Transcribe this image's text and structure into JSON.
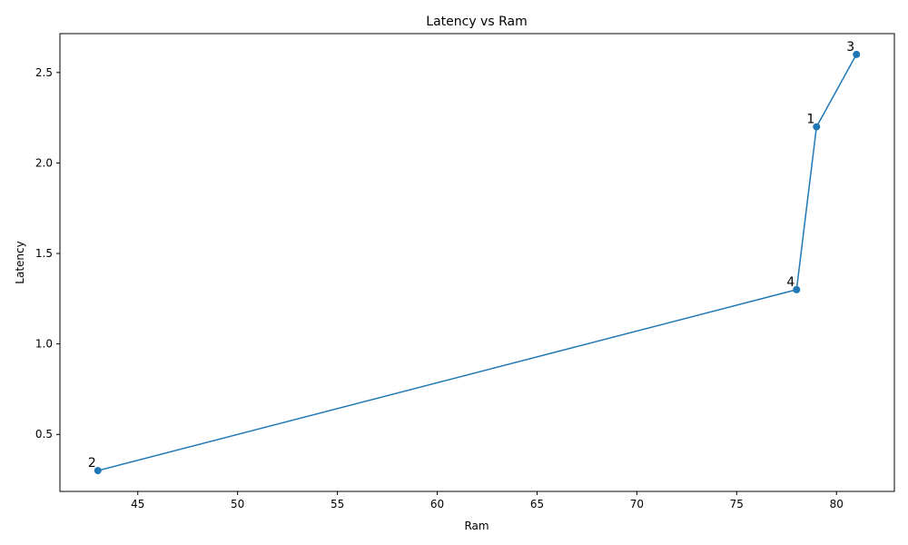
{
  "chart_data": {
    "type": "line",
    "title": "Latency vs Ram",
    "xlabel": "Ram",
    "ylabel": "Latency",
    "xlim": [
      41.1,
      82.9
    ],
    "ylim": [
      0.185,
      2.715
    ],
    "xticks": [
      45,
      50,
      55,
      60,
      65,
      70,
      75,
      80
    ],
    "yticks": [
      0.5,
      1.0,
      1.5,
      2.0,
      2.5
    ],
    "grid": false,
    "series": [
      {
        "color": "#1f77b4",
        "marker": "circle",
        "points": [
          {
            "label": "2",
            "x": 43,
            "y": 0.3
          },
          {
            "label": "4",
            "x": 78,
            "y": 1.3
          },
          {
            "label": "1",
            "x": 79,
            "y": 2.2
          },
          {
            "label": "3",
            "x": 81,
            "y": 2.6
          }
        ]
      }
    ]
  }
}
